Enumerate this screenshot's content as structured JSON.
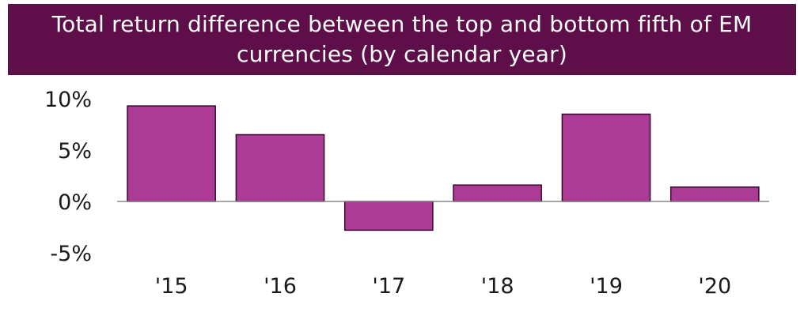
{
  "colors": {
    "title_bg": "#5e0f4a",
    "title_fg": "#ffffff",
    "bar_fill": "#ab3b94",
    "bar_stroke": "#3a0a2e",
    "axis": "#8a8a8a"
  },
  "chart_data": {
    "type": "bar",
    "title": "Total return difference between the top and bottom fifth of EM currencies (by calendar year)",
    "xlabel": "",
    "ylabel": "",
    "categories": [
      "'15",
      "'16",
      "'17",
      "'18",
      "'19",
      "'20"
    ],
    "values": [
      9.3,
      6.5,
      -2.8,
      1.6,
      8.5,
      1.4
    ],
    "unit": "%",
    "ylim": [
      -5,
      10
    ],
    "y_ticks": [
      10,
      5,
      0,
      -5
    ],
    "y_tick_labels": [
      "10%",
      "5%",
      "0%",
      "-5%"
    ],
    "grid": false,
    "legend": "none"
  }
}
